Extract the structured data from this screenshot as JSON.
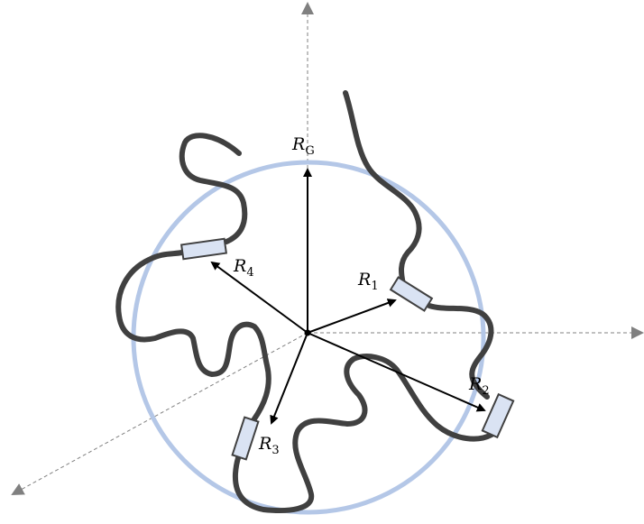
{
  "labels": [
    {
      "base": "R",
      "sub": "G"
    },
    {
      "base": "R",
      "sub": "1"
    },
    {
      "base": "R",
      "sub": "2"
    },
    {
      "base": "R",
      "sub": "3"
    },
    {
      "base": "R",
      "sub": "4"
    }
  ]
}
